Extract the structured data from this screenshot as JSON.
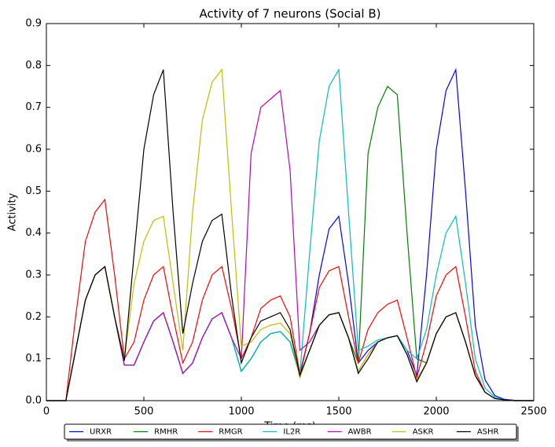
{
  "chart_data": {
    "type": "line",
    "title": "Activity of 7 neurons (Social B)",
    "x_label": "Time (ms)",
    "y_label": "Activity",
    "x": [
      0,
      50,
      100,
      150,
      200,
      250,
      300,
      350,
      400,
      450,
      500,
      550,
      600,
      650,
      700,
      750,
      800,
      850,
      900,
      950,
      1000,
      1050,
      1100,
      1150,
      1200,
      1250,
      1300,
      1350,
      1400,
      1450,
      1500,
      1550,
      1600,
      1650,
      1700,
      1750,
      1800,
      1850,
      1900,
      1950,
      2000,
      2050,
      2100,
      2150,
      2200,
      2250,
      2300,
      2350,
      2400,
      2450,
      2500
    ],
    "series": [
      {
        "name": "URXR",
        "color": "#0000ff",
        "values": [
          0,
          0,
          0,
          0.12,
          0.24,
          0.3,
          0.32,
          0.2,
          0.085,
          0.085,
          0.14,
          0.19,
          0.21,
          0.14,
          0.065,
          0.09,
          0.15,
          0.195,
          0.21,
          0.15,
          0.07,
          0.1,
          0.14,
          0.16,
          0.165,
          0.14,
          0.06,
          0.16,
          0.3,
          0.41,
          0.44,
          0.28,
          0.09,
          0.12,
          0.14,
          0.15,
          0.155,
          0.12,
          0.06,
          0.3,
          0.6,
          0.74,
          0.79,
          0.5,
          0.18,
          0.05,
          0.012,
          0.003,
          0.001,
          0,
          0
        ]
      },
      {
        "name": "RMHR",
        "color": "#008000",
        "values": [
          0,
          0,
          0,
          0.12,
          0.24,
          0.3,
          0.32,
          0.2,
          0.085,
          0.085,
          0.14,
          0.19,
          0.21,
          0.14,
          0.065,
          0.09,
          0.15,
          0.195,
          0.21,
          0.15,
          0.07,
          0.1,
          0.14,
          0.16,
          0.165,
          0.14,
          0.06,
          0.12,
          0.18,
          0.205,
          0.21,
          0.15,
          0.09,
          0.59,
          0.7,
          0.75,
          0.73,
          0.4,
          0.1,
          0.09,
          0.16,
          0.2,
          0.21,
          0.14,
          0.06,
          0.02,
          0.005,
          0.002,
          0,
          0,
          0
        ]
      },
      {
        "name": "RMGR",
        "color": "#ff0000",
        "values": [
          0,
          0,
          0,
          0.2,
          0.38,
          0.45,
          0.48,
          0.3,
          0.1,
          0.14,
          0.24,
          0.3,
          0.32,
          0.2,
          0.09,
          0.14,
          0.24,
          0.3,
          0.32,
          0.22,
          0.1,
          0.15,
          0.22,
          0.24,
          0.25,
          0.2,
          0.065,
          0.16,
          0.27,
          0.31,
          0.32,
          0.2,
          0.09,
          0.17,
          0.21,
          0.23,
          0.24,
          0.15,
          0.055,
          0.14,
          0.25,
          0.3,
          0.32,
          0.2,
          0.07,
          0.02,
          0.005,
          0.002,
          0,
          0,
          0
        ]
      },
      {
        "name": "IL2R",
        "color": "#00bfbf",
        "values": [
          0,
          0,
          0,
          0.12,
          0.24,
          0.3,
          0.32,
          0.2,
          0.085,
          0.085,
          0.14,
          0.19,
          0.21,
          0.14,
          0.065,
          0.09,
          0.15,
          0.195,
          0.21,
          0.15,
          0.07,
          0.1,
          0.14,
          0.16,
          0.165,
          0.14,
          0.06,
          0.35,
          0.62,
          0.75,
          0.79,
          0.45,
          0.12,
          0.13,
          0.145,
          0.15,
          0.155,
          0.12,
          0.1,
          0.17,
          0.3,
          0.4,
          0.44,
          0.28,
          0.1,
          0.03,
          0.008,
          0.002,
          0,
          0,
          0
        ]
      },
      {
        "name": "AWBR",
        "color": "#bf00bf",
        "values": [
          0,
          0,
          0,
          0.12,
          0.24,
          0.3,
          0.32,
          0.2,
          0.085,
          0.085,
          0.14,
          0.19,
          0.21,
          0.14,
          0.065,
          0.09,
          0.15,
          0.195,
          0.21,
          0.15,
          0.1,
          0.59,
          0.7,
          0.72,
          0.74,
          0.55,
          0.12,
          0.14,
          0.18,
          0.205,
          0.21,
          0.15,
          0.07,
          0.11,
          0.14,
          0.15,
          0.155,
          0.11,
          0.05,
          0.09,
          0.16,
          0.2,
          0.21,
          0.14,
          0.06,
          0.02,
          0.005,
          0.002,
          0,
          0,
          0
        ]
      },
      {
        "name": "ASKR",
        "color": "#bfbf00",
        "values": [
          0,
          0,
          0,
          0.12,
          0.24,
          0.3,
          0.32,
          0.2,
          0.1,
          0.28,
          0.38,
          0.43,
          0.44,
          0.28,
          0.12,
          0.45,
          0.67,
          0.76,
          0.79,
          0.45,
          0.13,
          0.14,
          0.17,
          0.18,
          0.185,
          0.16,
          0.055,
          0.12,
          0.18,
          0.205,
          0.21,
          0.15,
          0.07,
          0.11,
          0.14,
          0.15,
          0.155,
          0.11,
          0.05,
          0.09,
          0.16,
          0.2,
          0.21,
          0.14,
          0.06,
          0.02,
          0.005,
          0.002,
          0,
          0,
          0
        ]
      },
      {
        "name": "ASHR",
        "color": "#000000",
        "values": [
          0,
          0,
          0,
          0.12,
          0.24,
          0.3,
          0.32,
          0.2,
          0.095,
          0.35,
          0.6,
          0.73,
          0.79,
          0.45,
          0.16,
          0.28,
          0.38,
          0.43,
          0.445,
          0.25,
          0.09,
          0.15,
          0.19,
          0.2,
          0.21,
          0.17,
          0.06,
          0.12,
          0.18,
          0.205,
          0.21,
          0.15,
          0.065,
          0.1,
          0.14,
          0.15,
          0.155,
          0.11,
          0.045,
          0.09,
          0.16,
          0.2,
          0.21,
          0.14,
          0.06,
          0.02,
          0.005,
          0.002,
          0,
          0,
          0
        ]
      }
    ],
    "xlim": [
      0,
      2500
    ],
    "ylim": [
      0,
      0.9
    ],
    "xticks": [
      0,
      500,
      1000,
      1500,
      2000,
      2500
    ],
    "yticks": [
      {
        "value": 0,
        "label": "0.0"
      },
      0.1,
      0.2,
      0.3,
      0.4,
      0.5,
      0.6,
      0.7,
      0.8,
      0.9
    ],
    "legend": "bottom"
  }
}
